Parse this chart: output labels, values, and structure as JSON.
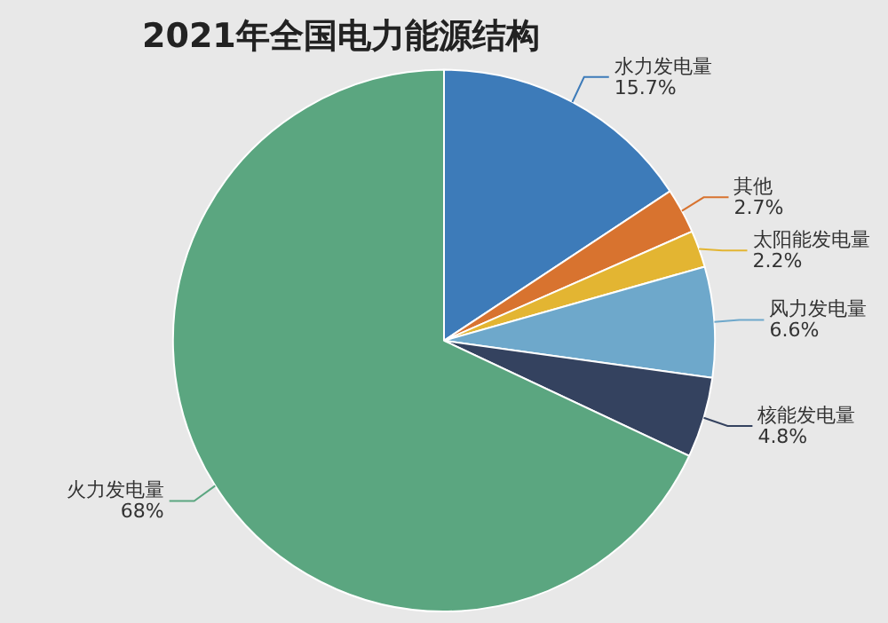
{
  "chart_data": {
    "type": "pie",
    "title": "2021年全国电力能源结构",
    "categories": [
      "水力发电量",
      "其他",
      "太阳能发电量",
      "风力发电量",
      "核能发电量",
      "火力发电量"
    ],
    "values": [
      15.7,
      2.7,
      2.2,
      6.6,
      4.8,
      68
    ],
    "value_labels": [
      "15.7%",
      "2.7%",
      "2.2%",
      "6.6%",
      "4.8%",
      "68%"
    ],
    "colors": [
      "#3d7bb9",
      "#d8732f",
      "#e3b532",
      "#6ea8cb",
      "#34425f",
      "#5ba680"
    ],
    "legend": false
  }
}
